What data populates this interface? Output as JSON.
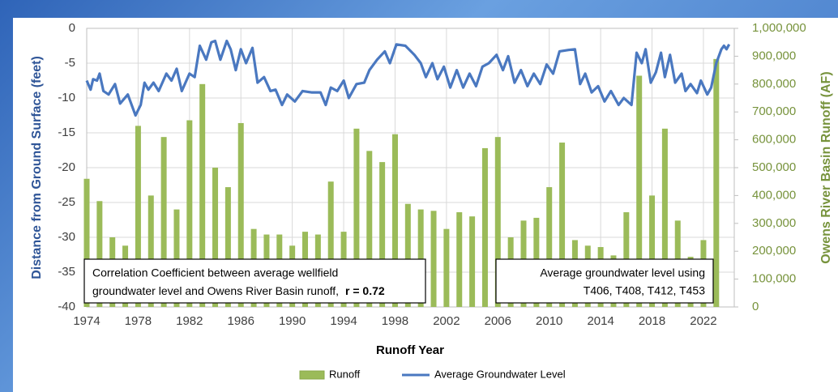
{
  "chart_data": {
    "type": "combo",
    "xlabel": "Runoff Year",
    "ylabel": "Distance from Ground Surface (feet)",
    "y2label": "Owens River Basin Runoff (AF)",
    "xlim": [
      1974,
      2024.4
    ],
    "xticks": [
      1974,
      1978,
      1982,
      1986,
      1990,
      1994,
      1998,
      2002,
      2006,
      2010,
      2014,
      2018,
      2022
    ],
    "ylim": [
      -40,
      0
    ],
    "yticks": [
      0,
      -5,
      -10,
      -15,
      -20,
      -25,
      -30,
      -35,
      -40
    ],
    "y2lim": [
      0,
      1000000
    ],
    "y2ticks": [
      {
        "value": 0,
        "label": "0"
      },
      {
        "value": 100000,
        "label": "100,000"
      },
      {
        "value": 200000,
        "label": "200,000"
      },
      {
        "value": 300000,
        "label": "300,000"
      },
      {
        "value": 400000,
        "label": "400,000"
      },
      {
        "value": 500000,
        "label": "500,000"
      },
      {
        "value": 600000,
        "label": "600,000"
      },
      {
        "value": 700000,
        "label": "700,000"
      },
      {
        "value": 800000,
        "label": "800,000"
      },
      {
        "value": 900000,
        "label": "900,000"
      },
      {
        "value": 1000000,
        "label": "1,000,000"
      }
    ],
    "grid": true,
    "legend": "bottom",
    "annotations": [
      "Correlation Coefficient between average wellfield",
      "groundwater level and Owens River Basin runoff,",
      "r = 0.72",
      "Average groundwater level using",
      "T406, T408, T412, T453"
    ],
    "series": [
      {
        "name": "Runoff",
        "type": "bar",
        "axis": "y2",
        "color": "#9bbb59",
        "x": [
          1974,
          1975,
          1976,
          1977,
          1978,
          1979,
          1980,
          1981,
          1982,
          1983,
          1984,
          1985,
          1986,
          1987,
          1988,
          1989,
          1990,
          1991,
          1992,
          1993,
          1994,
          1995,
          1996,
          1997,
          1998,
          1999,
          2000,
          2001,
          2002,
          2003,
          2004,
          2005,
          2006,
          2007,
          2008,
          2009,
          2010,
          2011,
          2012,
          2013,
          2014,
          2015,
          2016,
          2017,
          2018,
          2019,
          2020,
          2021,
          2022,
          2023
        ],
        "values": [
          460000,
          380000,
          250000,
          220000,
          650000,
          400000,
          610000,
          350000,
          670000,
          800000,
          500000,
          430000,
          660000,
          280000,
          260000,
          260000,
          220000,
          270000,
          260000,
          450000,
          270000,
          640000,
          560000,
          520000,
          620000,
          370000,
          350000,
          345000,
          280000,
          340000,
          325000,
          570000,
          610000,
          250000,
          310000,
          320000,
          430000,
          590000,
          240000,
          220000,
          215000,
          185000,
          340000,
          830000,
          400000,
          640000,
          310000,
          180000,
          240000,
          890000
        ]
      },
      {
        "name": "Average Groundwater Level",
        "type": "line",
        "color": "#4a78c0",
        "x": [
          1974.0,
          1974.3,
          1974.5,
          1974.8,
          1975.0,
          1975.3,
          1975.7,
          1976.2,
          1976.6,
          1977.2,
          1977.8,
          1978.2,
          1978.5,
          1978.8,
          1979.2,
          1979.6,
          1980.2,
          1980.6,
          1981.0,
          1981.4,
          1982.0,
          1982.4,
          1982.8,
          1983.3,
          1983.7,
          1984.0,
          1984.4,
          1984.9,
          1985.2,
          1985.6,
          1986.0,
          1986.4,
          1986.9,
          1987.3,
          1987.8,
          1988.3,
          1988.7,
          1989.2,
          1989.6,
          1990.2,
          1990.8,
          1991.5,
          1992.2,
          1992.6,
          1993.0,
          1993.5,
          1994.0,
          1994.4,
          1995.0,
          1995.6,
          1996.0,
          1996.6,
          1997.2,
          1997.6,
          1998.1,
          1998.8,
          1999.5,
          2000.0,
          2000.4,
          2000.9,
          2001.3,
          2001.8,
          2002.3,
          2002.8,
          2003.3,
          2003.8,
          2004.3,
          2004.8,
          2005.3,
          2005.9,
          2006.4,
          2006.8,
          2007.3,
          2007.8,
          2008.3,
          2008.8,
          2009.3,
          2009.8,
          2010.3,
          2010.8,
          2011.5,
          2012.0,
          2012.4,
          2012.8,
          2013.3,
          2013.8,
          2014.3,
          2014.8,
          2015.4,
          2015.8,
          2016.4,
          2016.8,
          2017.2,
          2017.5,
          2017.9,
          2018.3,
          2018.7,
          2019.0,
          2019.4,
          2019.8,
          2020.3,
          2020.6,
          2021.0,
          2021.5,
          2021.8,
          2022.3,
          2022.6,
          2023.0,
          2023.4,
          2023.6,
          2023.8,
          2024.0
        ],
        "values": [
          -7.5,
          -8.8,
          -7.3,
          -7.5,
          -6.5,
          -9,
          -9.5,
          -8,
          -10.8,
          -9.5,
          -12.5,
          -11,
          -7.8,
          -8.8,
          -7.8,
          -9,
          -6.5,
          -7.5,
          -5.8,
          -9,
          -6.5,
          -7,
          -2.5,
          -4.5,
          -2,
          -1.8,
          -4.5,
          -1.8,
          -3,
          -6,
          -3,
          -5,
          -2.8,
          -7.8,
          -7,
          -9,
          -8.8,
          -11,
          -9.5,
          -10.5,
          -9,
          -9.2,
          -9.2,
          -11,
          -8.5,
          -9,
          -7.5,
          -10,
          -8,
          -7.8,
          -6,
          -4.5,
          -3.3,
          -5,
          -2.3,
          -2.5,
          -3.8,
          -5,
          -7,
          -5,
          -7.3,
          -5.5,
          -8.5,
          -6,
          -8.5,
          -6.5,
          -8.3,
          -5.5,
          -5,
          -3.8,
          -6,
          -4,
          -7.8,
          -6,
          -8.3,
          -6.5,
          -8,
          -5.2,
          -6.5,
          -3.3,
          -3.1,
          -3,
          -8,
          -6.5,
          -9.2,
          -8.3,
          -10.5,
          -9,
          -11,
          -10,
          -11,
          -3.5,
          -5,
          -3,
          -7.8,
          -6.3,
          -3.5,
          -7,
          -3.8,
          -7.8,
          -6.5,
          -9,
          -8,
          -9.3,
          -7.5,
          -9.5,
          -8.5,
          -5,
          -3,
          -2.5,
          -3,
          -2.3
        ]
      }
    ]
  }
}
